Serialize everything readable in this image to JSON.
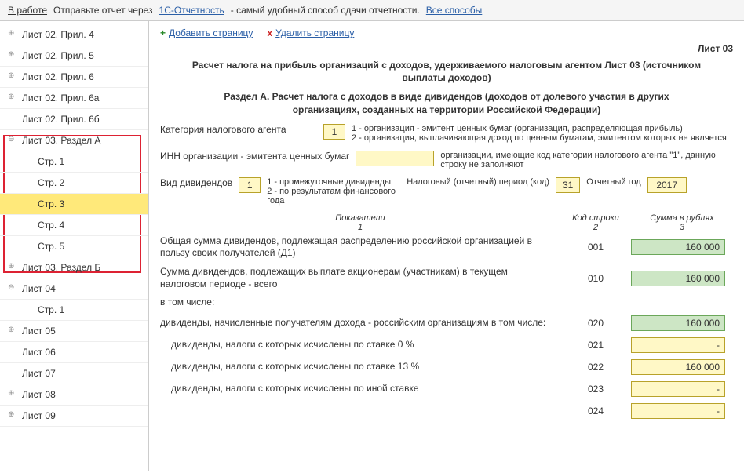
{
  "topbar": {
    "work": "В работе",
    "send": "Отправьте отчет через",
    "link1": "1С-Отчетность",
    "tail": "- самый удобный способ сдачи отчетности.",
    "link2": "Все способы"
  },
  "sidebar": {
    "items": [
      {
        "label": "Лист 02. Прил. 4",
        "toggle": "⊕"
      },
      {
        "label": "Лист 02. Прил. 5",
        "toggle": "⊕"
      },
      {
        "label": "Лист 02. Прил. 6",
        "toggle": "⊕"
      },
      {
        "label": "Лист 02. Прил. 6а",
        "toggle": "⊕"
      },
      {
        "label": "Лист 02. Прил. 6б",
        "toggle": ""
      },
      {
        "label": "Лист 03. Раздел А",
        "toggle": "⊖"
      },
      {
        "label": "Стр. 1",
        "sub": true
      },
      {
        "label": "Стр. 2",
        "sub": true
      },
      {
        "label": "Стр. 3",
        "sub": true,
        "selected": true
      },
      {
        "label": "Стр. 4",
        "sub": true
      },
      {
        "label": "Стр. 5",
        "sub": true
      },
      {
        "label": "Лист 03. Раздел Б",
        "toggle": "⊕"
      },
      {
        "label": "Лист 04",
        "toggle": "⊖"
      },
      {
        "label": "Стр. 1",
        "sub": true
      },
      {
        "label": "Лист 05",
        "toggle": "⊕"
      },
      {
        "label": "Лист 06",
        "toggle": ""
      },
      {
        "label": "Лист 07",
        "toggle": ""
      },
      {
        "label": "Лист 08",
        "toggle": "⊕"
      },
      {
        "label": "Лист 09",
        "toggle": "⊕"
      }
    ]
  },
  "actions": {
    "add": "Добавить страницу",
    "del": "Удалить страницу"
  },
  "sheet": "Лист 03",
  "h1": "Расчет налога на прибыль организаций с доходов, удерживаемого налоговым агентом Лист 03 (источником выплаты доходов)",
  "h2": "Раздел А. Расчет налога с доходов в виде дивидендов (доходов от долевого участия в других организациях, созданных на территории Российской Федерации)",
  "cat": {
    "label": "Категория налогового агента",
    "val": "1",
    "desc1": "1 - организация - эмитент ценных бумаг (организация, распределяющая прибыль)",
    "desc2": "2 - организация, выплачивающая доход по ценным бумагам, эмитентом которых не является"
  },
  "inn": {
    "label": "ИНН организации - эмитента ценных бумаг",
    "desc": "организации, имеющие код категории налогового агента \"1\", данную строку не заполняют"
  },
  "div": {
    "label": "Вид дивидендов",
    "val": "1",
    "desc1": "1 - промежуточные дивиденды",
    "desc2": "2 - по результатам финансового года",
    "period_label": "Налоговый (отчетный) период (код)",
    "period_val": "31",
    "year_label": "Отчетный год",
    "year_val": "2017"
  },
  "cols": {
    "c1": "Показатели",
    "n1": "1",
    "c2": "Код строки",
    "n2": "2",
    "c3": "Сумма в рублях",
    "n3": "3"
  },
  "rows": [
    {
      "desc": "Общая сумма дивидендов, подлежащая распределению российской организацией в пользу своих получателей (Д1)",
      "code": "001",
      "val": "160 000",
      "style": "green"
    },
    {
      "desc": "Сумма дивидендов, подлежащих выплате акционерам (участникам) в текущем налоговом периоде - всего",
      "code": "010",
      "val": "160 000",
      "style": "green"
    },
    {
      "desc": "в том числе:",
      "code": "",
      "val": "",
      "style": "none"
    },
    {
      "desc": "дивиденды, начисленные получателям дохода - российским организациям в том числе:",
      "code": "020",
      "val": "160 000",
      "style": "green"
    },
    {
      "desc": "дивиденды, налоги с которых исчислены по ставке 0 %",
      "code": "021",
      "val": "-",
      "style": "yellow",
      "indent": true
    },
    {
      "desc": "дивиденды, налоги с которых исчислены по ставке 13 %",
      "code": "022",
      "val": "160 000",
      "style": "yellow",
      "indent": true
    },
    {
      "desc": "дивиденды, налоги с которых исчислены по иной ставке",
      "code": "023",
      "val": "-",
      "style": "yellow",
      "indent": true
    },
    {
      "desc": "",
      "code": "024",
      "val": "-",
      "style": "yellow",
      "indent": true
    }
  ]
}
